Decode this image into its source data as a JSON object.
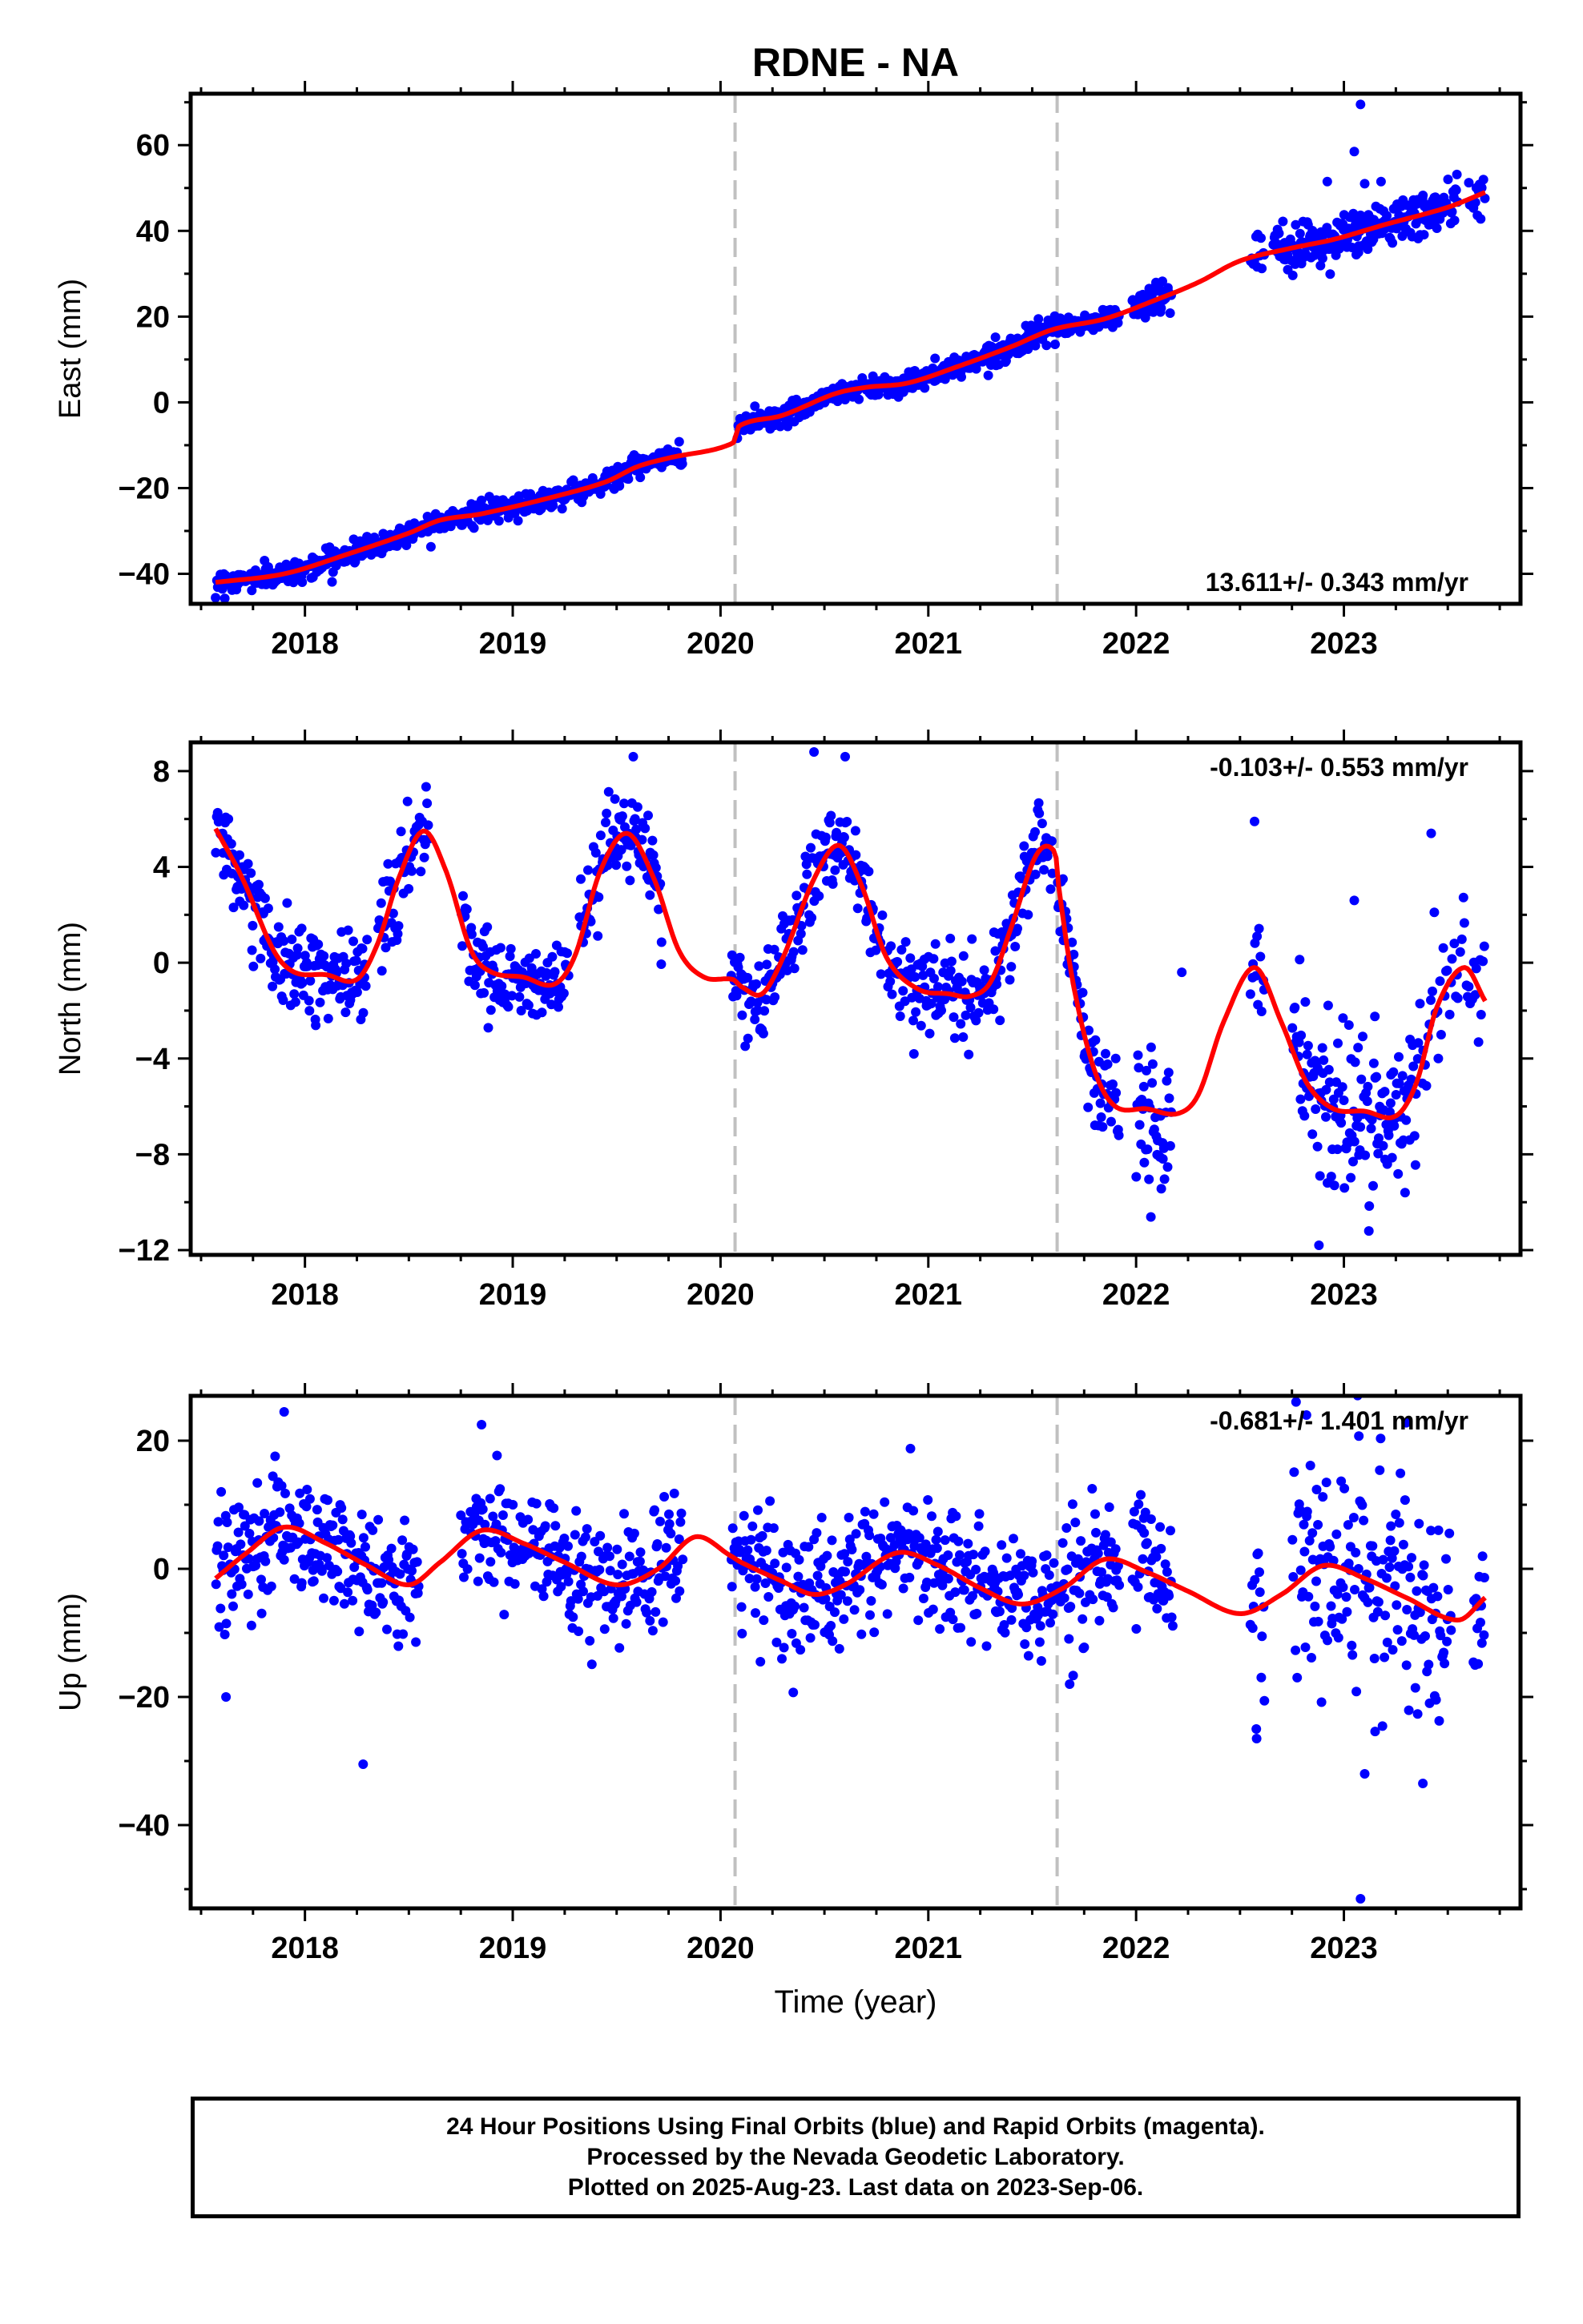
{
  "title": "RDNE - NA",
  "footer": {
    "line1": "24 Hour Positions Using Final Orbits (blue) and Rapid Orbits (magenta).",
    "line2": "Processed by the Nevada Geodetic Laboratory.",
    "line3": "Plotted on 2025-Aug-23. Last data on 2023-Sep-06."
  },
  "colors": {
    "final": "#0000ff",
    "model": "#ff0000",
    "breaks": "#c0c0c0",
    "frame": "#000000"
  },
  "chart_data": [
    {
      "type": "scatter",
      "panel": "east",
      "ylabel": "East (mm)",
      "xlabel": "",
      "xlim": [
        2017.45,
        2023.85
      ],
      "ylim": [
        -47,
        72
      ],
      "xticks": [
        2018,
        2019,
        2020,
        2021,
        2022,
        2023
      ],
      "yticks": [
        -40,
        -20,
        0,
        20,
        40,
        60
      ],
      "ytick_labels": [
        "−40",
        "−20",
        "0",
        "20",
        "40",
        "60"
      ],
      "rate": "13.611+/- 0.343 mm/yr",
      "rate_position": "bottom-right",
      "breaks": [
        2020.07,
        2021.62
      ],
      "model_knots": [
        [
          2017.57,
          -42
        ],
        [
          2017.9,
          -40
        ],
        [
          2018.2,
          -35.5
        ],
        [
          2018.5,
          -30.5
        ],
        [
          2018.65,
          -27.5
        ],
        [
          2018.85,
          -26
        ],
        [
          2019.2,
          -22
        ],
        [
          2019.45,
          -18.5
        ],
        [
          2019.6,
          -15
        ],
        [
          2019.75,
          -13
        ],
        [
          2020.06,
          -9.5
        ],
        [
          2020.09,
          -5.5
        ],
        [
          2020.3,
          -3
        ],
        [
          2020.55,
          2
        ],
        [
          2020.7,
          3.5
        ],
        [
          2020.9,
          4.5
        ],
        [
          2021.15,
          8.5
        ],
        [
          2021.4,
          13
        ],
        [
          2021.6,
          17
        ],
        [
          2021.85,
          19.5
        ],
        [
          2022.1,
          24
        ],
        [
          2022.3,
          28
        ],
        [
          2022.5,
          33
        ],
        [
          2022.75,
          36
        ],
        [
          2022.95,
          38
        ],
        [
          2023.2,
          41.5
        ],
        [
          2023.5,
          45.5
        ],
        [
          2023.68,
          49
        ]
      ],
      "data_segments": [
        {
          "x0": 2017.57,
          "x1": 2019.82,
          "n": 520,
          "sigma": 1.3,
          "jitter_x": 0
        },
        {
          "x0": 2020.08,
          "x1": 2021.92,
          "n": 480,
          "sigma": 1.2,
          "jitter_x": 0
        },
        {
          "x0": 2021.98,
          "x1": 2022.17,
          "n": 45,
          "sigma": 2.0,
          "jitter_x": 0
        },
        {
          "x0": 2022.55,
          "x1": 2022.62,
          "n": 12,
          "sigma": 2.0,
          "jitter_x": 0
        },
        {
          "x0": 2022.66,
          "x1": 2023.55,
          "n": 230,
          "sigma": 3.0,
          "jitter_x": 0
        },
        {
          "x0": 2023.6,
          "x1": 2023.68,
          "n": 14,
          "sigma": 2.2,
          "jitter_x": 0
        }
      ],
      "outliers": [
        [
          2023.08,
          69.5
        ],
        [
          2023.05,
          58.5
        ],
        [
          2022.92,
          51.5
        ],
        [
          2023.1,
          51
        ],
        [
          2023.07,
          35
        ]
      ]
    },
    {
      "type": "scatter",
      "panel": "north",
      "ylabel": "North (mm)",
      "xlabel": "",
      "xlim": [
        2017.45,
        2023.85
      ],
      "ylim": [
        -12.2,
        9.2
      ],
      "xticks": [
        2018,
        2019,
        2020,
        2021,
        2022,
        2023
      ],
      "yticks": [
        -12,
        -8,
        -4,
        0,
        4,
        8
      ],
      "ytick_labels": [
        "−12",
        "−8",
        "−4",
        "0",
        "4",
        "8"
      ],
      "rate": "-0.103+/- 0.553 mm/yr",
      "rate_position": "top-right",
      "breaks": [
        2020.07,
        2021.62
      ],
      "model_knots": [
        [
          2017.57,
          5.6
        ],
        [
          2017.7,
          3.5
        ],
        [
          2017.85,
          0.5
        ],
        [
          2017.95,
          -0.4
        ],
        [
          2018.1,
          -0.5
        ],
        [
          2018.25,
          -0.7
        ],
        [
          2018.35,
          0.8
        ],
        [
          2018.45,
          3.5
        ],
        [
          2018.57,
          5.5
        ],
        [
          2018.68,
          3.8
        ],
        [
          2018.8,
          0.5
        ],
        [
          2018.9,
          -0.4
        ],
        [
          2019.05,
          -0.6
        ],
        [
          2019.2,
          -0.9
        ],
        [
          2019.3,
          0.3
        ],
        [
          2019.42,
          3.8
        ],
        [
          2019.55,
          5.4
        ],
        [
          2019.68,
          3.5
        ],
        [
          2019.8,
          0.5
        ],
        [
          2019.92,
          -0.6
        ],
        [
          2020.06,
          -0.7
        ],
        [
          2020.1,
          -1.0
        ],
        [
          2020.2,
          -1.3
        ],
        [
          2020.3,
          0.2
        ],
        [
          2020.45,
          3.5
        ],
        [
          2020.57,
          4.9
        ],
        [
          2020.68,
          3.2
        ],
        [
          2020.8,
          0.2
        ],
        [
          2020.95,
          -1.1
        ],
        [
          2021.1,
          -1.3
        ],
        [
          2021.2,
          -1.4
        ],
        [
          2021.3,
          -0.8
        ],
        [
          2021.4,
          1.5
        ],
        [
          2021.52,
          4.5
        ],
        [
          2021.61,
          4.6
        ],
        [
          2021.63,
          3.0
        ],
        [
          2021.7,
          -1.0
        ],
        [
          2021.8,
          -4.5
        ],
        [
          2021.9,
          -6.0
        ],
        [
          2022.05,
          -6.1
        ],
        [
          2022.2,
          -6.3
        ],
        [
          2022.3,
          -5.5
        ],
        [
          2022.42,
          -2.5
        ],
        [
          2022.57,
          -0.2
        ],
        [
          2022.7,
          -2.5
        ],
        [
          2022.82,
          -5.0
        ],
        [
          2022.95,
          -6.1
        ],
        [
          2023.1,
          -6.2
        ],
        [
          2023.25,
          -6.4
        ],
        [
          2023.35,
          -5.0
        ],
        [
          2023.45,
          -1.8
        ],
        [
          2023.58,
          -0.2
        ],
        [
          2023.68,
          -1.6
        ]
      ],
      "data_segments": [
        {
          "x0": 2017.57,
          "x1": 2018.3,
          "n": 170,
          "sigma": 0.9
        },
        {
          "x0": 2018.35,
          "x1": 2018.6,
          "n": 55,
          "sigma": 0.9
        },
        {
          "x0": 2018.75,
          "x1": 2019.27,
          "n": 120,
          "sigma": 0.9
        },
        {
          "x0": 2019.32,
          "x1": 2019.72,
          "n": 95,
          "sigma": 0.9
        },
        {
          "x0": 2020.05,
          "x1": 2020.78,
          "n": 170,
          "sigma": 0.9
        },
        {
          "x0": 2020.8,
          "x1": 2021.6,
          "n": 180,
          "sigma": 1.0
        },
        {
          "x0": 2021.62,
          "x1": 2021.92,
          "n": 70,
          "sigma": 1.1
        },
        {
          "x0": 2022.0,
          "x1": 2022.17,
          "n": 45,
          "sigma": 1.6
        },
        {
          "x0": 2022.55,
          "x1": 2022.62,
          "n": 12,
          "sigma": 0.9
        },
        {
          "x0": 2022.75,
          "x1": 2023.35,
          "n": 150,
          "sigma": 1.6
        },
        {
          "x0": 2023.35,
          "x1": 2023.68,
          "n": 45,
          "sigma": 1.6
        }
      ],
      "outliers": [
        [
          2019.58,
          8.6
        ],
        [
          2020.45,
          8.8
        ],
        [
          2020.6,
          8.6
        ],
        [
          2022.57,
          5.9
        ],
        [
          2022.88,
          -11.8
        ],
        [
          2023.12,
          -11.2
        ],
        [
          2023.42,
          5.4
        ],
        [
          2023.05,
          2.6
        ],
        [
          2022.22,
          -0.4
        ]
      ]
    },
    {
      "type": "scatter",
      "panel": "up",
      "ylabel": "Up (mm)",
      "xlabel": "Time (year)",
      "xlim": [
        2017.45,
        2023.85
      ],
      "ylim": [
        -53,
        27
      ],
      "xticks": [
        2018,
        2019,
        2020,
        2021,
        2022,
        2023
      ],
      "yticks": [
        -40,
        -20,
        0,
        20
      ],
      "ytick_labels": [
        "−40",
        "−20",
        "0",
        "20"
      ],
      "rate": "-0.681+/- 1.401 mm/yr",
      "rate_position": "top-right",
      "breaks": [
        2020.07,
        2021.62
      ],
      "model_knots": [
        [
          2017.57,
          -1.5
        ],
        [
          2017.72,
          2.5
        ],
        [
          2017.9,
          6.5
        ],
        [
          2018.1,
          4
        ],
        [
          2018.3,
          0.5
        ],
        [
          2018.5,
          -2.5
        ],
        [
          2018.65,
          1
        ],
        [
          2018.85,
          6
        ],
        [
          2019.05,
          4
        ],
        [
          2019.25,
          1
        ],
        [
          2019.5,
          -2.5
        ],
        [
          2019.7,
          0
        ],
        [
          2019.88,
          5
        ],
        [
          2020.05,
          2
        ],
        [
          2020.1,
          1
        ],
        [
          2020.3,
          -2
        ],
        [
          2020.45,
          -4
        ],
        [
          2020.6,
          -2.5
        ],
        [
          2020.85,
          2.5
        ],
        [
          2021.05,
          0.5
        ],
        [
          2021.25,
          -3
        ],
        [
          2021.45,
          -5.5
        ],
        [
          2021.65,
          -3
        ],
        [
          2021.85,
          1.5
        ],
        [
          2022.05,
          -0.5
        ],
        [
          2022.25,
          -3.5
        ],
        [
          2022.5,
          -7
        ],
        [
          2022.7,
          -4
        ],
        [
          2022.9,
          0.5
        ],
        [
          2023.1,
          -1.5
        ],
        [
          2023.3,
          -4.5
        ],
        [
          2023.55,
          -8
        ],
        [
          2023.68,
          -4.5
        ]
      ],
      "data_segments": [
        {
          "x0": 2017.57,
          "x1": 2018.55,
          "n": 230,
          "sigma": 4.5
        },
        {
          "x0": 2018.75,
          "x1": 2019.82,
          "n": 240,
          "sigma": 4.5
        },
        {
          "x0": 2020.05,
          "x1": 2021.62,
          "n": 360,
          "sigma": 4.8
        },
        {
          "x0": 2021.63,
          "x1": 2021.92,
          "n": 70,
          "sigma": 5.0
        },
        {
          "x0": 2021.98,
          "x1": 2022.18,
          "n": 45,
          "sigma": 6.0
        },
        {
          "x0": 2022.55,
          "x1": 2022.62,
          "n": 14,
          "sigma": 8.0
        },
        {
          "x0": 2022.75,
          "x1": 2023.52,
          "n": 170,
          "sigma": 9.0
        },
        {
          "x0": 2023.62,
          "x1": 2023.68,
          "n": 14,
          "sigma": 6.0
        }
      ],
      "outliers": [
        [
          2017.9,
          24.5
        ],
        [
          2018.28,
          -30.5
        ],
        [
          2017.62,
          -20
        ],
        [
          2018.85,
          22.5
        ],
        [
          2023.08,
          -51.5
        ],
        [
          2023.1,
          -32
        ],
        [
          2023.38,
          -33.5
        ],
        [
          2022.82,
          24
        ],
        [
          2023.3,
          22.8
        ],
        [
          2022.58,
          -26.5
        ],
        [
          2020.35,
          -19.3
        ],
        [
          2021.68,
          -18
        ]
      ]
    }
  ]
}
